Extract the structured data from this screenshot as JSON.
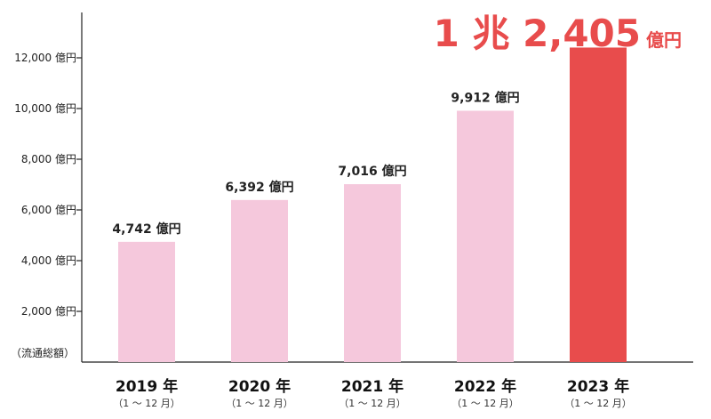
{
  "chart_data": {
    "type": "bar",
    "categories": [
      "2019 年",
      "2020 年",
      "2021 年",
      "2022 年",
      "2023 年"
    ],
    "category_sublabel": "（1 ～ 12 月）",
    "values": [
      4742,
      6392,
      7016,
      9912,
      12405
    ],
    "data_labels": [
      "4,742 億円",
      "6,392 億円",
      "7,016 億円",
      "9,912 億円",
      ""
    ],
    "highlight": {
      "index": 4,
      "text": "1 兆 2,405",
      "unit": "億円",
      "color": "#e84c4c"
    },
    "bar_color": "#f5c8dc",
    "yticks": [
      2000,
      4000,
      6000,
      8000,
      10000,
      12000
    ],
    "ytick_labels": [
      "2,000 億円",
      "4,000 億円",
      "6,000 億円",
      "8,000 億円",
      "10,000 億円",
      "12,000 億円"
    ],
    "ylabel": "（流通総額）",
    "ylim": [
      0,
      14000
    ],
    "grid": false
  }
}
